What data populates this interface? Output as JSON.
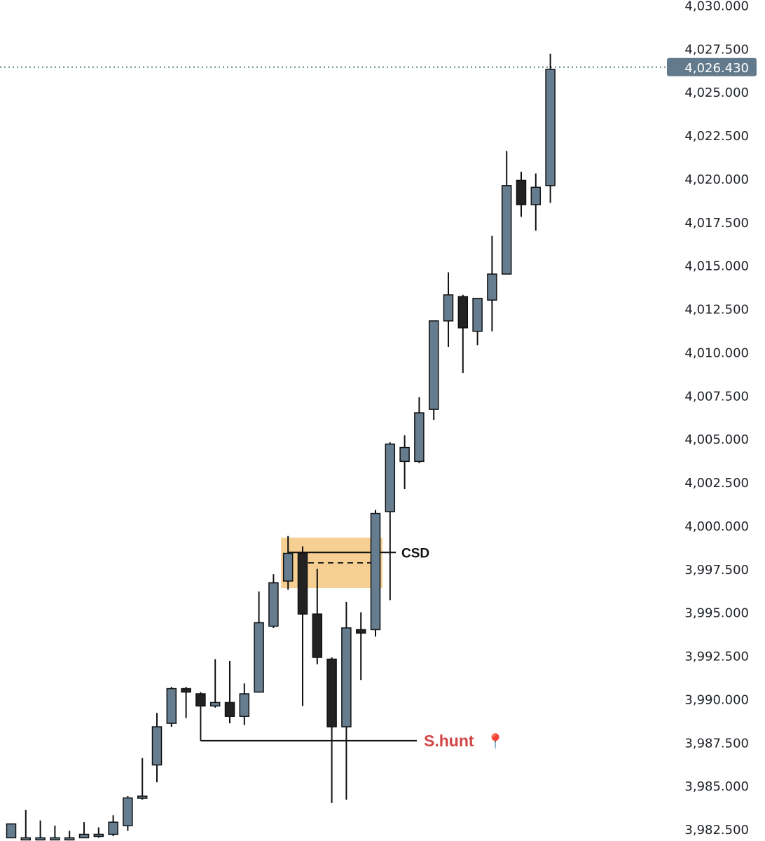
{
  "chart_data": {
    "type": "candlestick",
    "title": "",
    "xlabel": "",
    "ylabel": "",
    "ylim": [
      3982.0,
      4030.3
    ],
    "y_ticks": [
      "4,030.000",
      "4,027.500",
      "4,025.000",
      "4,022.500",
      "4,020.000",
      "4,017.500",
      "4,015.000",
      "4,012.500",
      "4,010.000",
      "4,007.500",
      "4,005.000",
      "4,002.500",
      "4,000.000",
      "3,997.500",
      "3,995.000",
      "3,992.500",
      "3,990.000",
      "3,987.500",
      "3,985.000",
      "3,982.500"
    ],
    "y_tick_values": [
      4030.0,
      4027.5,
      4025.0,
      4022.5,
      4020.0,
      4017.5,
      4015.0,
      4012.5,
      4010.0,
      4007.5,
      4005.0,
      4002.5,
      4000.0,
      3997.5,
      3995.0,
      3992.5,
      3990.0,
      3987.5,
      3985.0,
      3982.5
    ],
    "current_price": {
      "label": "4,026.430",
      "value": 4026.43
    },
    "colors": {
      "bull_body": "#667d90",
      "bear_body": "#222222",
      "wick": "#111111",
      "current_line": "#5f8a8a",
      "price_tag": "#627a8c",
      "zone": "#f6cf93",
      "hunt_text": "#d24545"
    },
    "candles": [
      {
        "o": 3982.0,
        "h": 3982.8,
        "l": 3982.0,
        "c": 3982.8
      },
      {
        "o": 3982.0,
        "h": 3983.6,
        "l": 3982.0,
        "c": 3982.0
      },
      {
        "o": 3982.0,
        "h": 3983.0,
        "l": 3982.0,
        "c": 3982.0
      },
      {
        "o": 3982.0,
        "h": 3982.7,
        "l": 3982.0,
        "c": 3982.0
      },
      {
        "o": 3982.0,
        "h": 3982.4,
        "l": 3982.0,
        "c": 3982.0
      },
      {
        "o": 3982.0,
        "h": 3982.9,
        "l": 3982.0,
        "c": 3982.2
      },
      {
        "o": 3982.2,
        "h": 3982.6,
        "l": 3982.0,
        "c": 3982.2
      },
      {
        "o": 3982.2,
        "h": 3983.3,
        "l": 3982.1,
        "c": 3982.9
      },
      {
        "o": 3982.7,
        "h": 3984.4,
        "l": 3982.4,
        "c": 3984.3
      },
      {
        "o": 3984.3,
        "h": 3986.6,
        "l": 3984.2,
        "c": 3984.4
      },
      {
        "o": 3986.2,
        "h": 3989.2,
        "l": 3985.2,
        "c": 3988.4
      },
      {
        "o": 3988.6,
        "h": 3990.7,
        "l": 3988.4,
        "c": 3990.6
      },
      {
        "o": 3990.6,
        "h": 3990.7,
        "l": 3988.9,
        "c": 3990.4
      },
      {
        "o": 3990.3,
        "h": 3990.4,
        "l": 3989.7,
        "c": 3989.6
      },
      {
        "o": 3989.6,
        "h": 3992.3,
        "l": 3989.5,
        "c": 3989.8
      },
      {
        "o": 3989.8,
        "h": 3992.2,
        "l": 3988.6,
        "c": 3989.0
      },
      {
        "o": 3989.0,
        "h": 3990.9,
        "l": 3988.5,
        "c": 3990.3
      },
      {
        "o": 3990.4,
        "h": 3996.2,
        "l": 3990.4,
        "c": 3994.4
      },
      {
        "o": 3994.2,
        "h": 3997.2,
        "l": 3994.1,
        "c": 3996.7
      },
      {
        "o": 3996.8,
        "h": 3999.4,
        "l": 3996.3,
        "c": 3998.4
      },
      {
        "o": 3998.4,
        "h": 3998.8,
        "l": 3989.6,
        "c": 3994.9
      },
      {
        "o": 3994.9,
        "h": 3997.5,
        "l": 3992.0,
        "c": 3992.4
      },
      {
        "o": 3992.3,
        "h": 3992.4,
        "l": 3984.0,
        "c": 3988.4
      },
      {
        "o": 3988.4,
        "h": 3995.6,
        "l": 3984.2,
        "c": 3994.1
      },
      {
        "o": 3994.0,
        "h": 3995.0,
        "l": 3991.1,
        "c": 3993.8
      },
      {
        "o": 3994.0,
        "h": 4000.9,
        "l": 3993.6,
        "c": 4000.7
      },
      {
        "o": 4000.8,
        "h": 4004.8,
        "l": 3995.7,
        "c": 4004.7
      },
      {
        "o": 4003.7,
        "h": 4005.2,
        "l": 4002.1,
        "c": 4004.5
      },
      {
        "o": 4003.7,
        "h": 4007.4,
        "l": 4003.6,
        "c": 4006.5
      },
      {
        "o": 4006.7,
        "h": 4011.8,
        "l": 4006.1,
        "c": 4011.8
      },
      {
        "o": 4011.8,
        "h": 4014.6,
        "l": 4010.3,
        "c": 4013.3
      },
      {
        "o": 4013.2,
        "h": 4013.3,
        "l": 4008.8,
        "c": 4011.4
      },
      {
        "o": 4011.2,
        "h": 4013.1,
        "l": 4010.4,
        "c": 4013.1
      },
      {
        "o": 4013.0,
        "h": 4016.7,
        "l": 4011.2,
        "c": 4014.5
      },
      {
        "o": 4014.5,
        "h": 4021.6,
        "l": 4014.5,
        "c": 4019.6
      },
      {
        "o": 4019.9,
        "h": 4020.4,
        "l": 4017.8,
        "c": 4018.5
      },
      {
        "o": 4018.5,
        "h": 4020.3,
        "l": 4017.0,
        "c": 4019.5
      },
      {
        "o": 4019.6,
        "h": 4027.2,
        "l": 4018.6,
        "c": 4026.3
      }
    ],
    "annotations": {
      "csd": {
        "label": "CSD",
        "zone_top": 3999.3,
        "zone_bottom": 3996.4,
        "line_price": 3998.45,
        "dashed_price": 3997.85,
        "from_candle": 19,
        "to_candle": 25
      },
      "stop_hunt": {
        "label": "S.hunt",
        "icon": "pushpin-icon",
        "icon_glyph": "📍",
        "anchor_price": 3990.0,
        "line_price": 3987.6,
        "from_candle": 13
      }
    }
  }
}
